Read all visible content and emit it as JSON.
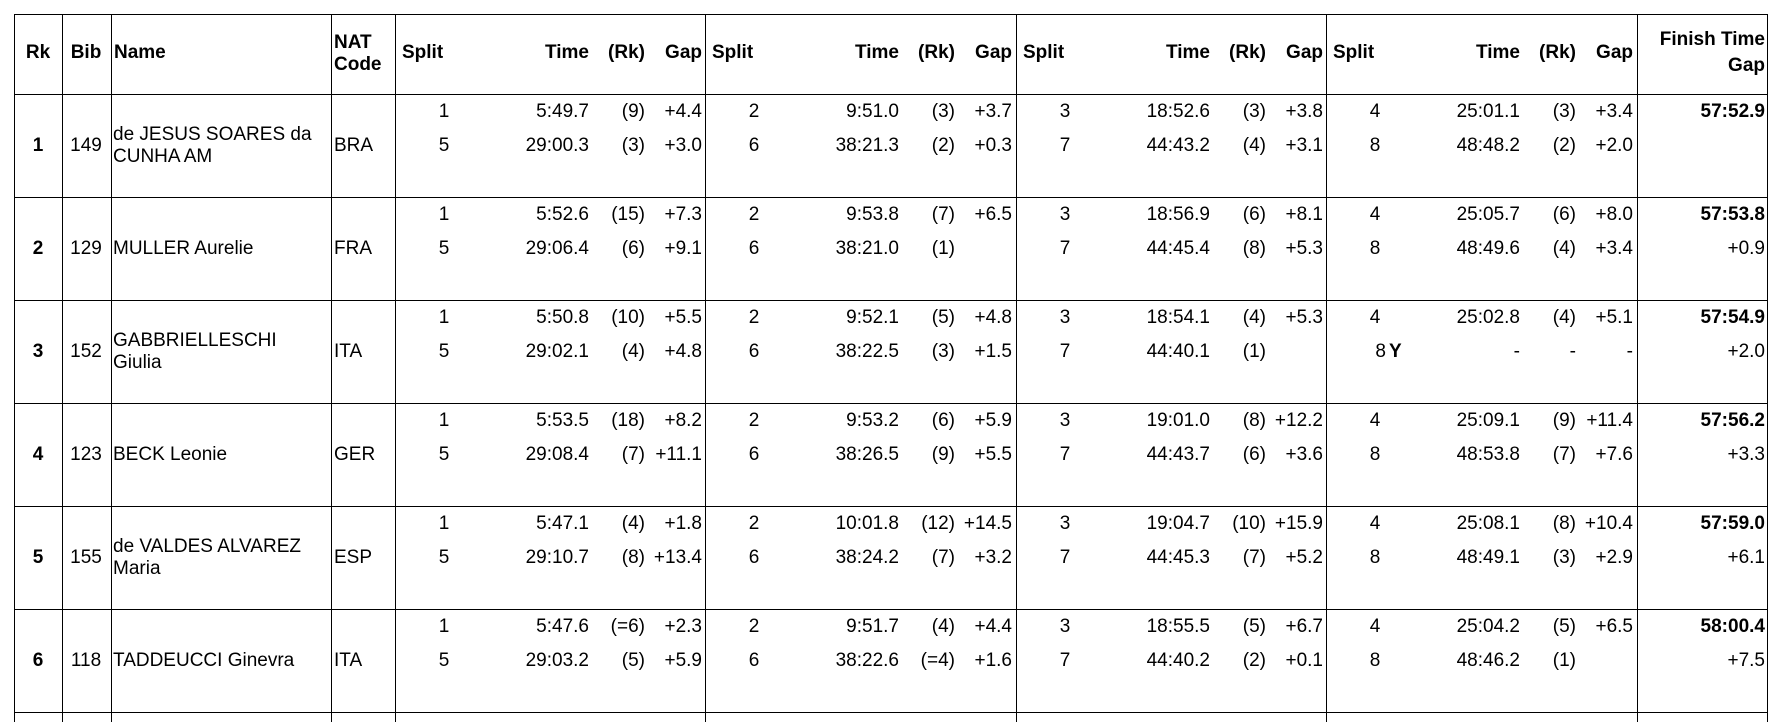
{
  "header": {
    "rk": "Rk",
    "bib": "Bib",
    "name": "Name",
    "nat": "NAT Code",
    "split_cols": [
      "Split",
      "Time",
      "(Rk)",
      "Gap"
    ],
    "finish": [
      "Finish Time",
      "Gap"
    ]
  },
  "rows": [
    {
      "rk": "1",
      "bib": "149",
      "name": "de JESUS SOARES da CUNHA AM",
      "nat": "BRA",
      "finish_time": "57:52.9",
      "finish_gap": null,
      "splits": [
        {
          "n": "1",
          "time": "5:49.7",
          "rk": "(9)",
          "gap": "+4.4"
        },
        {
          "n": "2",
          "time": "9:51.0",
          "rk": "(3)",
          "gap": "+3.7"
        },
        {
          "n": "3",
          "time": "18:52.6",
          "rk": "(3)",
          "gap": "+3.8"
        },
        {
          "n": "4",
          "time": "25:01.1",
          "rk": "(3)",
          "gap": "+3.4"
        },
        {
          "n": "5",
          "time": "29:00.3",
          "rk": "(3)",
          "gap": "+3.0"
        },
        {
          "n": "6",
          "time": "38:21.3",
          "rk": "(2)",
          "gap": "+0.3"
        },
        {
          "n": "7",
          "time": "44:43.2",
          "rk": "(4)",
          "gap": "+3.1"
        },
        {
          "n": "8",
          "time": "48:48.2",
          "rk": "(2)",
          "gap": "+2.0"
        }
      ]
    },
    {
      "rk": "2",
      "bib": "129",
      "name": "MULLER Aurelie",
      "nat": "FRA",
      "finish_time": "57:53.8",
      "finish_gap": "+0.9",
      "splits": [
        {
          "n": "1",
          "time": "5:52.6",
          "rk": "(15)",
          "gap": "+7.3"
        },
        {
          "n": "2",
          "time": "9:53.8",
          "rk": "(7)",
          "gap": "+6.5"
        },
        {
          "n": "3",
          "time": "18:56.9",
          "rk": "(6)",
          "gap": "+8.1"
        },
        {
          "n": "4",
          "time": "25:05.7",
          "rk": "(6)",
          "gap": "+8.0"
        },
        {
          "n": "5",
          "time": "29:06.4",
          "rk": "(6)",
          "gap": "+9.1"
        },
        {
          "n": "6",
          "time": "38:21.0",
          "rk": "(1)",
          "gap": null
        },
        {
          "n": "7",
          "time": "44:45.4",
          "rk": "(8)",
          "gap": "+5.3"
        },
        {
          "n": "8",
          "time": "48:49.6",
          "rk": "(4)",
          "gap": "+3.4"
        }
      ]
    },
    {
      "rk": "3",
      "bib": "152",
      "name": "GABBRIELLESCHI Giulia",
      "nat": "ITA",
      "finish_time": "57:54.9",
      "finish_gap": "+2.0",
      "splits": [
        {
          "n": "1",
          "time": "5:50.8",
          "rk": "(10)",
          "gap": "+5.5"
        },
        {
          "n": "2",
          "time": "9:52.1",
          "rk": "(5)",
          "gap": "+4.8"
        },
        {
          "n": "3",
          "time": "18:54.1",
          "rk": "(4)",
          "gap": "+5.3"
        },
        {
          "n": "4",
          "time": "25:02.8",
          "rk": "(4)",
          "gap": "+5.1"
        },
        {
          "n": "5",
          "time": "29:02.1",
          "rk": "(4)",
          "gap": "+4.8"
        },
        {
          "n": "6",
          "time": "38:22.5",
          "rk": "(3)",
          "gap": "+1.5"
        },
        {
          "n": "7",
          "time": "44:40.1",
          "rk": "(1)",
          "gap": null
        },
        {
          "n": "8",
          "flag": "Y",
          "time": "-",
          "rk": "-",
          "gap": "-"
        }
      ]
    },
    {
      "rk": "4",
      "bib": "123",
      "name": "BECK Leonie",
      "nat": "GER",
      "finish_time": "57:56.2",
      "finish_gap": "+3.3",
      "splits": [
        {
          "n": "1",
          "time": "5:53.5",
          "rk": "(18)",
          "gap": "+8.2"
        },
        {
          "n": "2",
          "time": "9:53.2",
          "rk": "(6)",
          "gap": "+5.9"
        },
        {
          "n": "3",
          "time": "19:01.0",
          "rk": "(8)",
          "gap": "+12.2"
        },
        {
          "n": "4",
          "time": "25:09.1",
          "rk": "(9)",
          "gap": "+11.4"
        },
        {
          "n": "5",
          "time": "29:08.4",
          "rk": "(7)",
          "gap": "+11.1"
        },
        {
          "n": "6",
          "time": "38:26.5",
          "rk": "(9)",
          "gap": "+5.5"
        },
        {
          "n": "7",
          "time": "44:43.7",
          "rk": "(6)",
          "gap": "+3.6"
        },
        {
          "n": "8",
          "time": "48:53.8",
          "rk": "(7)",
          "gap": "+7.6"
        }
      ]
    },
    {
      "rk": "5",
      "bib": "155",
      "name": "de VALDES ALVAREZ Maria",
      "nat": "ESP",
      "finish_time": "57:59.0",
      "finish_gap": "+6.1",
      "splits": [
        {
          "n": "1",
          "time": "5:47.1",
          "rk": "(4)",
          "gap": "+1.8"
        },
        {
          "n": "2",
          "time": "10:01.8",
          "rk": "(12)",
          "gap": "+14.5"
        },
        {
          "n": "3",
          "time": "19:04.7",
          "rk": "(10)",
          "gap": "+15.9"
        },
        {
          "n": "4",
          "time": "25:08.1",
          "rk": "(8)",
          "gap": "+10.4"
        },
        {
          "n": "5",
          "time": "29:10.7",
          "rk": "(8)",
          "gap": "+13.4"
        },
        {
          "n": "6",
          "time": "38:24.2",
          "rk": "(7)",
          "gap": "+3.2"
        },
        {
          "n": "7",
          "time": "44:45.3",
          "rk": "(7)",
          "gap": "+5.2"
        },
        {
          "n": "8",
          "time": "48:49.1",
          "rk": "(3)",
          "gap": "+2.9"
        }
      ]
    },
    {
      "rk": "6",
      "bib": "118",
      "name": "TADDEUCCI Ginevra",
      "nat": "ITA",
      "finish_time": "58:00.4",
      "finish_gap": "+7.5",
      "splits": [
        {
          "n": "1",
          "time": "5:47.6",
          "rk": "(=6)",
          "gap": "+2.3"
        },
        {
          "n": "2",
          "time": "9:51.7",
          "rk": "(4)",
          "gap": "+4.4"
        },
        {
          "n": "3",
          "time": "18:55.5",
          "rk": "(5)",
          "gap": "+6.7"
        },
        {
          "n": "4",
          "time": "25:04.2",
          "rk": "(5)",
          "gap": "+6.5"
        },
        {
          "n": "5",
          "time": "29:03.2",
          "rk": "(5)",
          "gap": "+5.9"
        },
        {
          "n": "6",
          "time": "38:22.6",
          "rk": "(=4)",
          "gap": "+1.6"
        },
        {
          "n": "7",
          "time": "44:40.2",
          "rk": "(2)",
          "gap": "+0.1"
        },
        {
          "n": "8",
          "time": "48:46.2",
          "rk": "(1)",
          "gap": null
        }
      ]
    }
  ]
}
